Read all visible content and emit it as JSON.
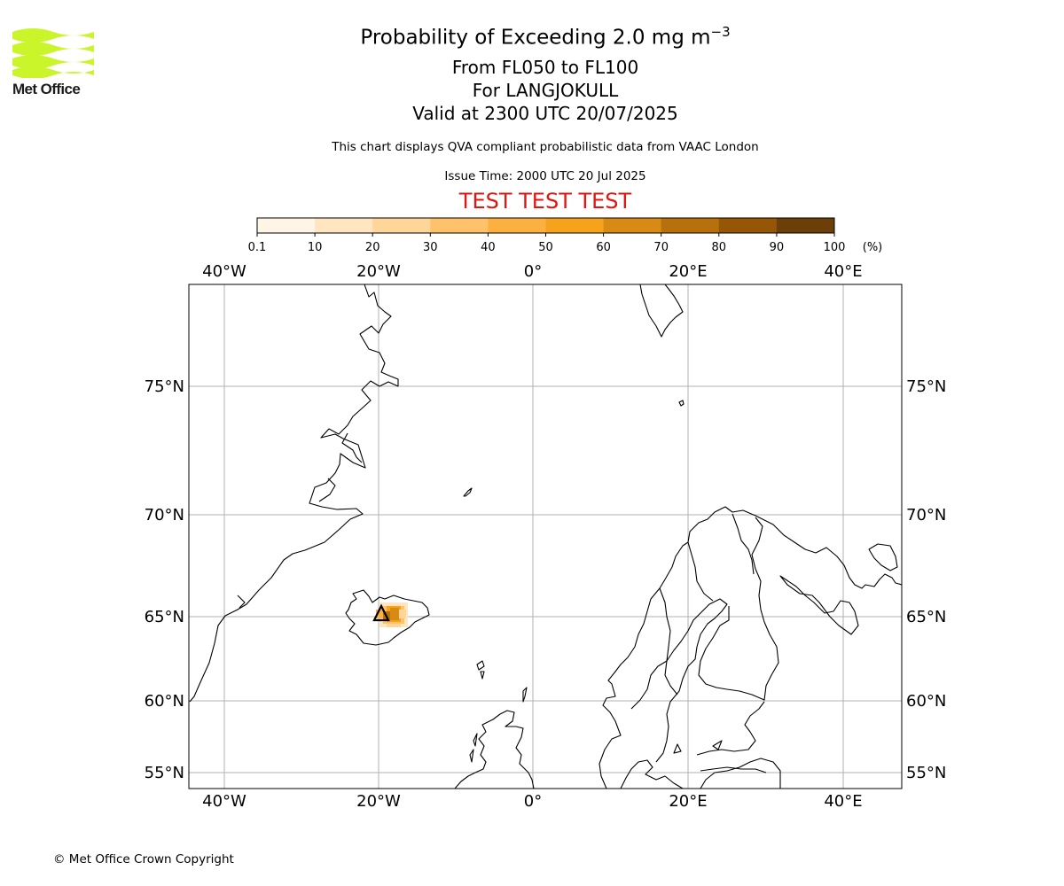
{
  "logo": {
    "name": "Met Office"
  },
  "title": {
    "line1_main": "Probability of Exceeding 2.0 mg m",
    "line1_sup": "−3",
    "line2": "From FL050 to FL100",
    "line3": "For LANGJOKULL",
    "line4": "Valid at 2300 UTC 20/07/2025"
  },
  "subtitle": "This chart displays QVA compliant probabilistic data from VAAC London",
  "issue_time": "Issue Time: 2000 UTC 20 Jul 2025",
  "test_banner": "TEST TEST TEST",
  "colorbar": {
    "ticks": [
      "0.1",
      "10",
      "20",
      "30",
      "40",
      "50",
      "60",
      "70",
      "80",
      "90",
      "100"
    ],
    "unit": "(%)",
    "colors": [
      "#fff5e6",
      "#ffe5c0",
      "#ffd59a",
      "#ffc26a",
      "#fcb040",
      "#f7a21b",
      "#d98a14",
      "#b8700d",
      "#955606",
      "#6b3f07"
    ]
  },
  "map": {
    "lon_labels": [
      "40°W",
      "20°W",
      "0°",
      "20°E",
      "40°E"
    ],
    "lat_labels": [
      "75°N",
      "70°N",
      "65°N",
      "60°N",
      "55°N"
    ],
    "volcano": "LANGJOKULL"
  },
  "footer": "© Met Office Crown Copyright"
}
